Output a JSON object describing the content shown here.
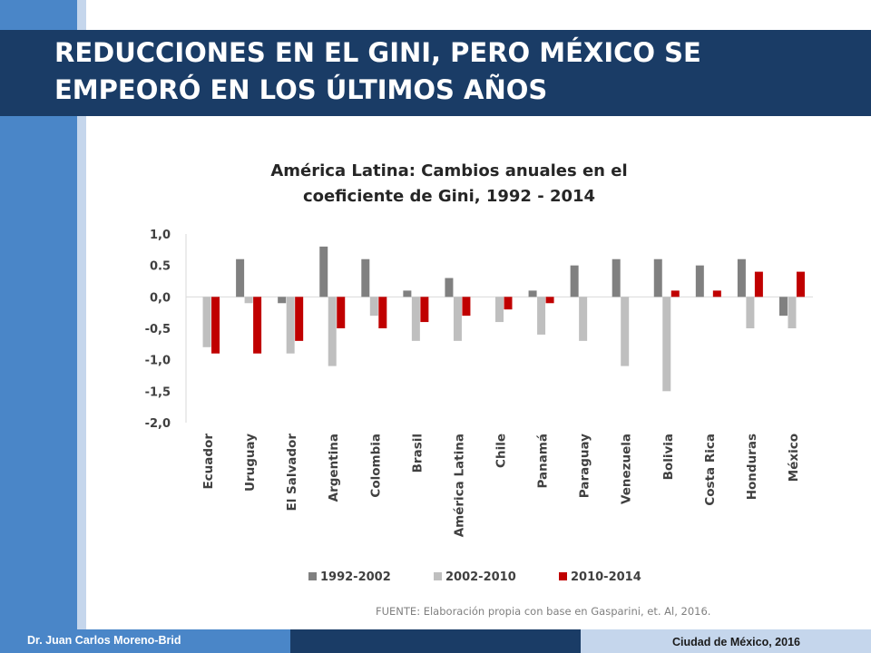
{
  "slide": {
    "title": "REDUCCIONES EN EL GINI, PERO MÉXICO SE EMPEORÓ EN LOS ÚLTIMOS AÑOS",
    "source": "FUENTE: Elaboración propia con base en Gasparini, et. Al, 2016.",
    "footer_author": "Dr. Juan Carlos Moreno-Brid",
    "footer_place": "Ciudad de México, 2016"
  },
  "colors": {
    "series_1": "#808080",
    "series_2": "#bfbfbf",
    "series_3": "#c00000",
    "title_band": "#1a3c66",
    "accent_blue": "#4a86c8",
    "light_blue": "#c5d6ec"
  },
  "chart_data": {
    "type": "bar",
    "title_lines": [
      "América Latina: Cambios anuales en el",
      "coeficiente de Gini, 1992 - 2014"
    ],
    "categories": [
      "Ecuador",
      "Uruguay",
      "El Salvador",
      "Argentina",
      "Colombia",
      "Brasil",
      "América Latina",
      "Chile",
      "Panamá",
      "Paraguay",
      "Venezuela",
      "Bolivia",
      "Costa Rica",
      "Honduras",
      "México"
    ],
    "series": [
      {
        "name": "1992-2002",
        "values": [
          0,
          0.6,
          -0.1,
          0.8,
          0.6,
          0.1,
          0.3,
          0,
          0.1,
          0.5,
          0.6,
          0.6,
          0.5,
          0.6,
          -0.3
        ]
      },
      {
        "name": "2002-2010",
        "values": [
          -0.8,
          -0.1,
          -0.9,
          -1.1,
          -0.3,
          -0.7,
          -0.7,
          -0.4,
          -0.6,
          -0.7,
          -1.1,
          -1.5,
          0,
          -0.5,
          -0.5
        ]
      },
      {
        "name": "2010-2014",
        "values": [
          -0.9,
          -0.9,
          -0.7,
          -0.5,
          -0.5,
          -0.4,
          -0.3,
          -0.2,
          -0.1,
          0,
          0,
          0.1,
          0.1,
          0.4,
          0.4
        ]
      }
    ],
    "y_ticks": [
      "1,0",
      "0.5",
      "0,0",
      "-0,5",
      "-1,0",
      "-1,5",
      "-2,0"
    ],
    "y_tick_values": [
      1.0,
      0.5,
      0.0,
      -0.5,
      -1.0,
      -1.5,
      -2.0
    ],
    "ylim": [
      -2.0,
      1.0
    ],
    "legend_position": "bottom",
    "grid": false
  }
}
